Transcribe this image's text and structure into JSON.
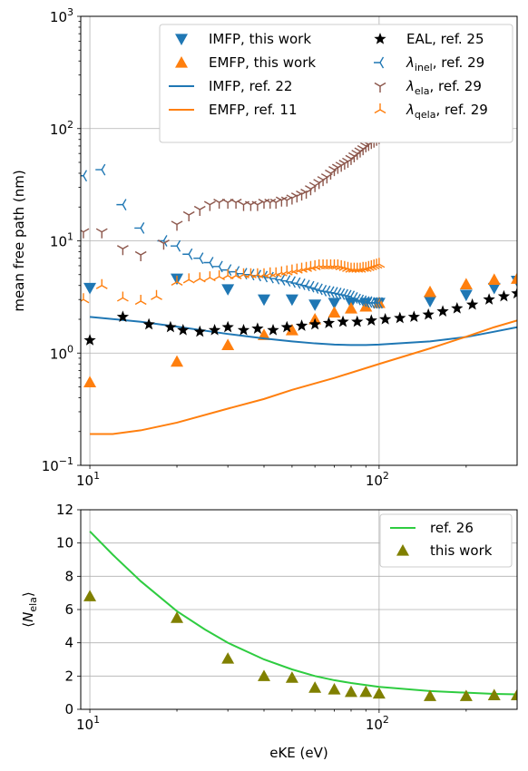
{
  "chart_data": [
    {
      "type": "scatter",
      "xscale": "log",
      "yscale": "log",
      "xlim": [
        9.3,
        300
      ],
      "ylim": [
        0.1,
        1000
      ],
      "xticks": [
        {
          "value": 10,
          "base": "10",
          "exp": "1"
        },
        {
          "value": 100,
          "base": "10",
          "exp": "2"
        }
      ],
      "yticks": [
        {
          "value": 0.1,
          "base": "10",
          "exp": "−1"
        },
        {
          "value": 1,
          "base": "10",
          "exp": "0"
        },
        {
          "value": 10,
          "base": "10",
          "exp": "1"
        },
        {
          "value": 100,
          "base": "10",
          "exp": "2"
        },
        {
          "value": 1000,
          "base": "10",
          "exp": "3"
        }
      ],
      "ylabel": "mean free path (nm)",
      "xlabel": "",
      "grid": true,
      "legend_position": "top-right",
      "legend_columns": 2,
      "series": [
        {
          "name": "IMFP, this work",
          "legend_text": "IMFP, this work",
          "kind": "marker",
          "marker": "triangle-down",
          "color": "#1f77b4",
          "x": [
            10,
            20,
            30,
            40,
            50,
            60,
            70,
            80,
            90,
            100,
            150,
            200,
            250,
            300
          ],
          "y": [
            3.8,
            4.6,
            3.7,
            3.0,
            3.0,
            2.7,
            2.8,
            2.8,
            2.8,
            2.8,
            2.9,
            3.3,
            3.8,
            4.4
          ]
        },
        {
          "name": "EMFP, this work",
          "legend_text": "EMFP, this work",
          "kind": "marker",
          "marker": "triangle-up",
          "color": "#ff7f0e",
          "x": [
            10,
            20,
            30,
            40,
            50,
            60,
            70,
            80,
            90,
            100,
            150,
            200,
            250,
            300
          ],
          "y": [
            0.55,
            0.84,
            1.18,
            1.45,
            1.6,
            2.0,
            2.3,
            2.5,
            2.6,
            2.8,
            3.5,
            4.1,
            4.5,
            4.6
          ]
        },
        {
          "name": "IMFP, ref. 22",
          "legend_text": "IMFP, ref. 22",
          "kind": "line",
          "color": "#1f77b4",
          "x": [
            10,
            15,
            20,
            30,
            40,
            50,
            60,
            70,
            80,
            90,
            100,
            150,
            200,
            250,
            300
          ],
          "y": [
            2.1,
            1.9,
            1.72,
            1.48,
            1.35,
            1.27,
            1.22,
            1.19,
            1.18,
            1.18,
            1.19,
            1.27,
            1.39,
            1.55,
            1.7
          ]
        },
        {
          "name": "EMFP, ref. 11",
          "legend_text": "EMFP, ref. 11",
          "kind": "line",
          "color": "#ff7f0e",
          "x": [
            10,
            12,
            15,
            20,
            30,
            40,
            50,
            70,
            100,
            150,
            200,
            250,
            300
          ],
          "y": [
            0.19,
            0.19,
            0.205,
            0.24,
            0.32,
            0.39,
            0.47,
            0.6,
            0.8,
            1.1,
            1.4,
            1.7,
            1.95
          ]
        },
        {
          "name": "EAL, ref. 25",
          "legend_text": "EAL, ref. 25",
          "kind": "marker",
          "marker": "star",
          "color": "#000000",
          "x": [
            10,
            13,
            16,
            19,
            21,
            24,
            27,
            30,
            34,
            38,
            43,
            48,
            54,
            60,
            67,
            75,
            84,
            94,
            105,
            118,
            132,
            148,
            166,
            186,
            210,
            240,
            270,
            300
          ],
          "y": [
            1.3,
            2.1,
            1.8,
            1.7,
            1.6,
            1.55,
            1.6,
            1.7,
            1.6,
            1.65,
            1.6,
            1.7,
            1.75,
            1.8,
            1.85,
            1.9,
            1.9,
            1.95,
            2.0,
            2.05,
            2.1,
            2.2,
            2.35,
            2.5,
            2.7,
            3.0,
            3.2,
            3.4
          ]
        },
        {
          "name": "λinel, ref. 29",
          "legend_text": "λ",
          "legend_sub": "inel",
          "legend_rest": ", ref. 29",
          "kind": "marker",
          "marker": "tri-left",
          "color": "#1f77b4",
          "x": [
            9.5,
            11,
            13,
            15,
            18,
            20,
            22,
            24,
            26,
            28,
            30,
            32,
            34,
            36,
            38,
            40,
            42,
            44,
            46,
            48,
            50,
            52,
            54,
            56,
            58,
            60,
            62,
            64,
            66,
            68,
            70,
            72,
            74,
            76,
            78,
            80,
            82,
            84,
            86,
            88,
            90,
            92,
            94,
            96,
            98,
            100
          ],
          "y": [
            38,
            43,
            21,
            13,
            10,
            9,
            7.6,
            7.0,
            6.4,
            5.9,
            5.5,
            5.3,
            5.1,
            5.0,
            4.9,
            4.8,
            4.7,
            4.6,
            4.5,
            4.4,
            4.3,
            4.2,
            4.1,
            4.0,
            3.9,
            3.8,
            3.7,
            3.6,
            3.55,
            3.5,
            3.45,
            3.4,
            3.35,
            3.3,
            3.25,
            3.2,
            3.1,
            3.0,
            2.95,
            2.9,
            2.85,
            2.85,
            2.8,
            2.8,
            2.8,
            2.8
          ]
        },
        {
          "name": "λela, ref. 29",
          "legend_text": "λ",
          "legend_sub": "ela",
          "legend_rest": ", ref. 29",
          "kind": "marker",
          "marker": "tri-down",
          "color": "#8c564b",
          "x": [
            9.5,
            11,
            13,
            15,
            18,
            20,
            22,
            24,
            26,
            28,
            30,
            32,
            34,
            36,
            38,
            40,
            42,
            44,
            46,
            48,
            50,
            52,
            54,
            56,
            58,
            60,
            62,
            64,
            66,
            68,
            70,
            72,
            74,
            76,
            78,
            80,
            82,
            84,
            86,
            88,
            90,
            92,
            94,
            96,
            98,
            100
          ],
          "y": [
            12,
            12,
            8.5,
            7.5,
            9.5,
            14,
            17,
            19,
            21,
            22,
            22,
            22,
            21,
            21,
            21,
            22,
            22,
            22,
            23,
            23,
            24,
            25,
            26,
            27,
            29,
            31,
            33,
            35,
            37,
            40,
            43,
            45,
            47,
            49,
            51,
            54,
            57,
            60,
            63,
            66,
            70,
            72,
            75,
            77,
            80,
            83
          ]
        },
        {
          "name": "λqela, ref. 29",
          "legend_text": "λ",
          "legend_sub": "qela",
          "legend_rest": ", ref. 29",
          "kind": "marker",
          "marker": "tri-up",
          "color": "#ff7f0e",
          "x": [
            9.5,
            11,
            13,
            15,
            17,
            20,
            22,
            24,
            26,
            28,
            30,
            32,
            34,
            36,
            38,
            40,
            42,
            44,
            46,
            48,
            50,
            52,
            54,
            56,
            58,
            60,
            62,
            64,
            66,
            68,
            70,
            72,
            74,
            76,
            78,
            80,
            82,
            84,
            86,
            88,
            90,
            92,
            94,
            96,
            98,
            100
          ],
          "y": [
            3.0,
            4.0,
            3.1,
            2.9,
            3.2,
            4.3,
            4.5,
            4.6,
            4.7,
            4.8,
            4.9,
            4.9,
            5.0,
            5.0,
            5.0,
            5.0,
            5.1,
            5.1,
            5.2,
            5.3,
            5.4,
            5.5,
            5.6,
            5.7,
            5.8,
            5.9,
            6.0,
            6.0,
            6.0,
            6.0,
            6.0,
            6.0,
            5.9,
            5.8,
            5.7,
            5.6,
            5.6,
            5.6,
            5.6,
            5.7,
            5.7,
            5.8,
            5.9,
            6.0,
            6.1,
            6.2
          ]
        }
      ]
    },
    {
      "type": "line",
      "xscale": "log",
      "yscale": "linear",
      "xlim": [
        9.3,
        300
      ],
      "ylim": [
        0,
        12
      ],
      "xticks": [
        {
          "value": 10,
          "base": "10",
          "exp": "1"
        },
        {
          "value": 100,
          "base": "10",
          "exp": "2"
        }
      ],
      "yticks": [
        0,
        2,
        4,
        6,
        8,
        10,
        12
      ],
      "xlabel": "eKE (eV)",
      "ylabel_parts": {
        "open": "⟨N",
        "sub": "ela",
        "close": "⟩"
      },
      "grid": true,
      "legend_position": "top-right",
      "series": [
        {
          "name": "ref. 26",
          "legend_text": "ref. 26",
          "kind": "line",
          "color": "#2ecc40",
          "x": [
            10,
            12,
            15,
            20,
            25,
            30,
            40,
            50,
            60,
            70,
            80,
            100,
            150,
            200,
            250,
            300
          ],
          "y": [
            10.7,
            9.3,
            7.7,
            5.9,
            4.8,
            4.0,
            3.0,
            2.4,
            2.0,
            1.75,
            1.58,
            1.35,
            1.1,
            1.0,
            0.93,
            0.9
          ]
        },
        {
          "name": "this work",
          "legend_text": "this work",
          "kind": "marker",
          "marker": "triangle-up",
          "color": "#808000",
          "x": [
            10,
            20,
            30,
            40,
            50,
            60,
            70,
            80,
            90,
            100,
            150,
            200,
            250,
            300
          ],
          "y": [
            6.8,
            5.5,
            3.05,
            2.0,
            1.9,
            1.3,
            1.2,
            1.05,
            1.05,
            0.95,
            0.8,
            0.8,
            0.85,
            0.85
          ]
        }
      ]
    }
  ]
}
